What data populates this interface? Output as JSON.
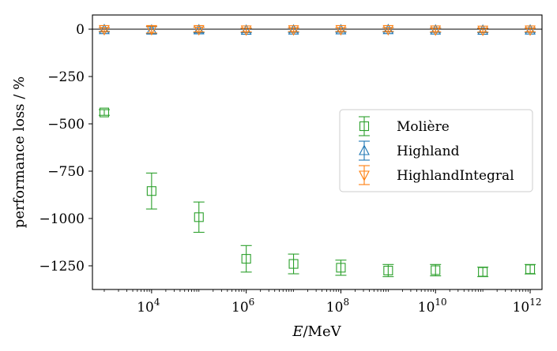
{
  "chart_data": {
    "type": "scatter",
    "xscale": "log",
    "xlabel_symbol": "E",
    "xlabel_unit": "/MeV",
    "ylabel": "performance loss / %",
    "ylim": [
      -1375,
      75
    ],
    "xlim_exponent": [
      2.75,
      12.25
    ],
    "x_ticks": [
      {
        "base": "10",
        "exp": "4",
        "value": 10000
      },
      {
        "base": "10",
        "exp": "6",
        "value": 1000000
      },
      {
        "base": "10",
        "exp": "8",
        "value": 100000000
      },
      {
        "base": "10",
        "exp": "10",
        "value": 10000000000
      },
      {
        "base": "10",
        "exp": "12",
        "value": 1000000000000
      }
    ],
    "y_ticks": [
      {
        "label": "0",
        "value": 0
      },
      {
        "label": "−250",
        "value": -250
      },
      {
        "label": "−500",
        "value": -500
      },
      {
        "label": "−750",
        "value": -750
      },
      {
        "label": "−1000",
        "value": -1000
      },
      {
        "label": "−1250",
        "value": -1250
      }
    ],
    "reference_line_y": 0,
    "legend_position": "center-right",
    "series": [
      {
        "name": "Molière",
        "color": "#2ca02c",
        "marker": "square",
        "x": [
          1000,
          10000,
          100000,
          1000000,
          10000000,
          100000000,
          1000000000,
          10000000000,
          100000000000,
          1000000000000
        ],
        "y": [
          -440,
          -855,
          -993,
          -1213,
          -1240,
          -1260,
          -1275,
          -1273,
          -1282,
          -1268
        ],
        "err": [
          15,
          95,
          80,
          70,
          52,
          40,
          32,
          30,
          25,
          25
        ]
      },
      {
        "name": "Highland",
        "color": "#1f77b4",
        "marker": "triangle-up",
        "x": [
          1000,
          10000,
          100000,
          1000000,
          10000000,
          100000000,
          1000000000,
          10000000000,
          100000000000,
          1000000000000
        ],
        "y": [
          -3,
          -5,
          -4,
          -6,
          -5,
          -4,
          -3,
          -5,
          -6,
          -5
        ],
        "err": [
          12,
          18,
          15,
          12,
          12,
          12,
          12,
          12,
          12,
          12
        ]
      },
      {
        "name": "HighlandIntegral",
        "color": "#ff7f0e",
        "marker": "triangle-down",
        "x": [
          1000,
          10000,
          100000,
          1000000,
          10000000,
          100000000,
          1000000000,
          10000000000,
          100000000000,
          1000000000000
        ],
        "y": [
          -2,
          -2,
          -2,
          -4,
          -3,
          -2,
          -2,
          -4,
          -5,
          -4
        ],
        "err": [
          10,
          18,
          12,
          10,
          10,
          10,
          10,
          10,
          10,
          10
        ]
      }
    ]
  }
}
